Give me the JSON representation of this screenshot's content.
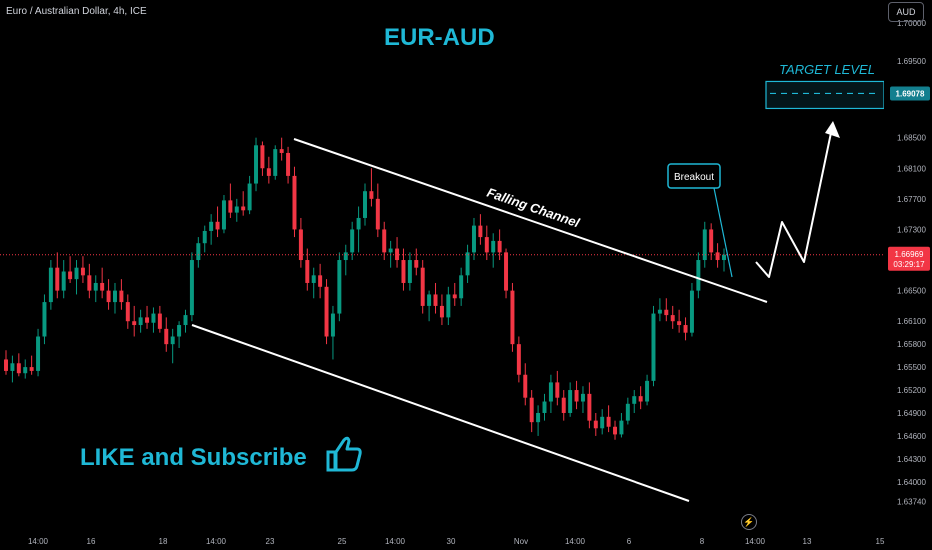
{
  "header": {
    "symbol_info": "Euro / Australian Dollar, 4h, ICE",
    "currency": "AUD"
  },
  "title": "EUR-AUD",
  "cta_text": "LIKE and Subscribe",
  "colors": {
    "background": "#000000",
    "bull": "#089981",
    "bear": "#f23645",
    "accent": "#1fb8d6",
    "annotation": "#ffffff",
    "price_line": "#f23645"
  },
  "icons": [
    "thumbs-up-icon",
    "flash-icon"
  ],
  "chart_data": {
    "type": "candlestick",
    "ylim": [
      1.6337,
      1.703
    ],
    "y_ticks": [
      "1.70000",
      "1.69500",
      "1.68500",
      "1.68100",
      "1.67700",
      "1.67300",
      "1.66500",
      "1.66100",
      "1.65800",
      "1.65500",
      "1.65200",
      "1.64900",
      "1.64600",
      "1.64300",
      "1.64000",
      "1.63740"
    ],
    "x_ticks": [
      "14:00",
      "16",
      "18",
      "14:00",
      "23",
      "25",
      "14:00",
      "30",
      "Nov",
      "14:00",
      "6",
      "8",
      "14:00",
      "13",
      "15"
    ],
    "current_price": {
      "value": 1.66969,
      "label": "1.66969",
      "countdown": "03:29:17"
    },
    "target": {
      "value": 1.69078,
      "label": "1.69078",
      "text": "TARGET LEVEL"
    },
    "annotations": {
      "channel_label": "Falling Channel",
      "breakout_label": "Breakout"
    },
    "candles": [
      [
        1.656,
        1.6572,
        1.654,
        1.6545
      ],
      [
        1.6545,
        1.6565,
        1.653,
        1.6555
      ],
      [
        1.6555,
        1.6568,
        1.6538,
        1.6542
      ],
      [
        1.6542,
        1.656,
        1.6535,
        1.655
      ],
      [
        1.655,
        1.6565,
        1.654,
        1.6545
      ],
      [
        1.6545,
        1.66,
        1.6538,
        1.659
      ],
      [
        1.659,
        1.6645,
        1.658,
        1.6635
      ],
      [
        1.6635,
        1.669,
        1.6625,
        1.668
      ],
      [
        1.668,
        1.67,
        1.664,
        1.665
      ],
      [
        1.665,
        1.669,
        1.664,
        1.6675
      ],
      [
        1.6675,
        1.6695,
        1.666,
        1.6665
      ],
      [
        1.6665,
        1.669,
        1.6645,
        1.668
      ],
      [
        1.668,
        1.6695,
        1.666,
        1.667
      ],
      [
        1.667,
        1.6685,
        1.664,
        1.665
      ],
      [
        1.665,
        1.667,
        1.6635,
        1.666
      ],
      [
        1.666,
        1.668,
        1.664,
        1.665
      ],
      [
        1.665,
        1.6665,
        1.6625,
        1.6635
      ],
      [
        1.6635,
        1.666,
        1.662,
        1.665
      ],
      [
        1.665,
        1.6665,
        1.6625,
        1.6635
      ],
      [
        1.6635,
        1.6645,
        1.66,
        1.661
      ],
      [
        1.661,
        1.663,
        1.659,
        1.6605
      ],
      [
        1.6605,
        1.6625,
        1.6595,
        1.6615
      ],
      [
        1.6615,
        1.663,
        1.66,
        1.6608
      ],
      [
        1.6608,
        1.6628,
        1.6595,
        1.662
      ],
      [
        1.662,
        1.663,
        1.6595,
        1.66
      ],
      [
        1.66,
        1.6615,
        1.657,
        1.658
      ],
      [
        1.658,
        1.66,
        1.6555,
        1.659
      ],
      [
        1.659,
        1.661,
        1.6575,
        1.6605
      ],
      [
        1.6605,
        1.6625,
        1.6595,
        1.6618
      ],
      [
        1.6618,
        1.67,
        1.661,
        1.669
      ],
      [
        1.669,
        1.672,
        1.668,
        1.6712
      ],
      [
        1.6712,
        1.6735,
        1.67,
        1.6728
      ],
      [
        1.6728,
        1.675,
        1.671,
        1.674
      ],
      [
        1.674,
        1.676,
        1.672,
        1.673
      ],
      [
        1.673,
        1.6775,
        1.6725,
        1.6768
      ],
      [
        1.6768,
        1.679,
        1.6745,
        1.6752
      ],
      [
        1.6752,
        1.677,
        1.674,
        1.676
      ],
      [
        1.676,
        1.678,
        1.6748,
        1.6755
      ],
      [
        1.6755,
        1.68,
        1.675,
        1.679
      ],
      [
        1.679,
        1.685,
        1.678,
        1.684
      ],
      [
        1.684,
        1.6845,
        1.68,
        1.681
      ],
      [
        1.681,
        1.6825,
        1.679,
        1.68
      ],
      [
        1.68,
        1.684,
        1.6795,
        1.6835
      ],
      [
        1.6835,
        1.685,
        1.682,
        1.683
      ],
      [
        1.683,
        1.6838,
        1.679,
        1.68
      ],
      [
        1.68,
        1.6812,
        1.672,
        1.673
      ],
      [
        1.673,
        1.6745,
        1.668,
        1.669
      ],
      [
        1.669,
        1.6705,
        1.665,
        1.666
      ],
      [
        1.666,
        1.668,
        1.664,
        1.667
      ],
      [
        1.667,
        1.6685,
        1.664,
        1.6655
      ],
      [
        1.6655,
        1.6665,
        1.658,
        1.659
      ],
      [
        1.659,
        1.663,
        1.656,
        1.662
      ],
      [
        1.662,
        1.67,
        1.661,
        1.669
      ],
      [
        1.669,
        1.671,
        1.667,
        1.67
      ],
      [
        1.67,
        1.674,
        1.669,
        1.673
      ],
      [
        1.673,
        1.676,
        1.67,
        1.6745
      ],
      [
        1.6745,
        1.679,
        1.6735,
        1.678
      ],
      [
        1.678,
        1.681,
        1.676,
        1.677
      ],
      [
        1.677,
        1.679,
        1.672,
        1.673
      ],
      [
        1.673,
        1.674,
        1.669,
        1.67
      ],
      [
        1.67,
        1.6715,
        1.668,
        1.6705
      ],
      [
        1.6705,
        1.672,
        1.668,
        1.669
      ],
      [
        1.669,
        1.6705,
        1.665,
        1.666
      ],
      [
        1.666,
        1.67,
        1.665,
        1.669
      ],
      [
        1.669,
        1.6705,
        1.667,
        1.668
      ],
      [
        1.668,
        1.669,
        1.662,
        1.663
      ],
      [
        1.663,
        1.665,
        1.661,
        1.6645
      ],
      [
        1.6645,
        1.666,
        1.662,
        1.663
      ],
      [
        1.663,
        1.6645,
        1.6605,
        1.6615
      ],
      [
        1.6615,
        1.6655,
        1.6605,
        1.6645
      ],
      [
        1.6645,
        1.666,
        1.663,
        1.664
      ],
      [
        1.664,
        1.668,
        1.663,
        1.667
      ],
      [
        1.667,
        1.671,
        1.666,
        1.67
      ],
      [
        1.67,
        1.6745,
        1.669,
        1.6735
      ],
      [
        1.6735,
        1.675,
        1.671,
        1.672
      ],
      [
        1.672,
        1.6735,
        1.669,
        1.67
      ],
      [
        1.67,
        1.6725,
        1.668,
        1.6715
      ],
      [
        1.6715,
        1.673,
        1.669,
        1.67
      ],
      [
        1.67,
        1.6705,
        1.664,
        1.665
      ],
      [
        1.665,
        1.666,
        1.657,
        1.658
      ],
      [
        1.658,
        1.659,
        1.653,
        1.654
      ],
      [
        1.654,
        1.6555,
        1.65,
        1.651
      ],
      [
        1.651,
        1.652,
        1.6465,
        1.6478
      ],
      [
        1.6478,
        1.65,
        1.646,
        1.649
      ],
      [
        1.649,
        1.6515,
        1.648,
        1.6505
      ],
      [
        1.6505,
        1.654,
        1.649,
        1.653
      ],
      [
        1.653,
        1.6545,
        1.65,
        1.651
      ],
      [
        1.651,
        1.652,
        1.648,
        1.649
      ],
      [
        1.649,
        1.653,
        1.6485,
        1.652
      ],
      [
        1.652,
        1.6532,
        1.6495,
        1.6505
      ],
      [
        1.6505,
        1.6525,
        1.649,
        1.6515
      ],
      [
        1.6515,
        1.653,
        1.647,
        1.648
      ],
      [
        1.648,
        1.649,
        1.646,
        1.647
      ],
      [
        1.647,
        1.6495,
        1.6462,
        1.6485
      ],
      [
        1.6485,
        1.65,
        1.6465,
        1.6472
      ],
      [
        1.6472,
        1.648,
        1.6455,
        1.6462
      ],
      [
        1.6462,
        1.649,
        1.6458,
        1.648
      ],
      [
        1.648,
        1.651,
        1.6475,
        1.6502
      ],
      [
        1.6502,
        1.652,
        1.649,
        1.6512
      ],
      [
        1.6512,
        1.6525,
        1.6495,
        1.6505
      ],
      [
        1.6505,
        1.654,
        1.65,
        1.6532
      ],
      [
        1.6532,
        1.663,
        1.6525,
        1.662
      ],
      [
        1.662,
        1.664,
        1.661,
        1.6625
      ],
      [
        1.6625,
        1.664,
        1.661,
        1.6618
      ],
      [
        1.6618,
        1.663,
        1.66,
        1.661
      ],
      [
        1.661,
        1.6625,
        1.6595,
        1.6605
      ],
      [
        1.6605,
        1.6615,
        1.6585,
        1.6595
      ],
      [
        1.6595,
        1.666,
        1.659,
        1.665
      ],
      [
        1.665,
        1.67,
        1.664,
        1.669
      ],
      [
        1.669,
        1.674,
        1.668,
        1.673
      ],
      [
        1.673,
        1.6738,
        1.669,
        1.67
      ],
      [
        1.67,
        1.6712,
        1.668,
        1.669
      ],
      [
        1.669,
        1.6705,
        1.6675,
        1.6697
      ]
    ]
  }
}
